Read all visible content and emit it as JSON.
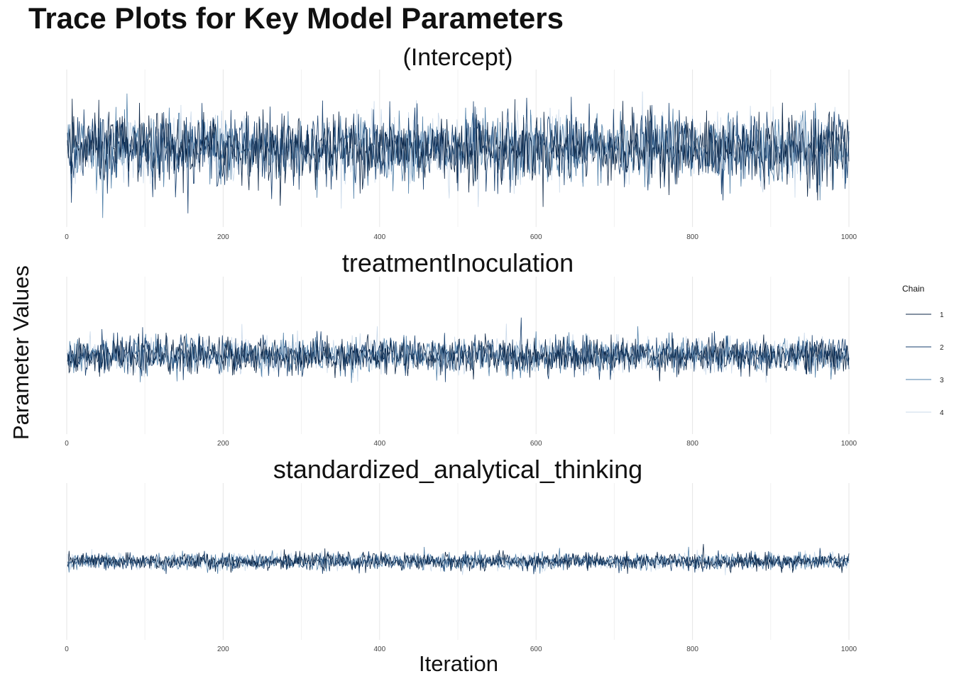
{
  "title": "Trace Plots for Key Model Parameters",
  "xlabel": "Iteration",
  "ylabel": "Parameter Values",
  "legend": {
    "title": "Chain",
    "items": [
      "1",
      "2",
      "3",
      "4"
    ]
  },
  "colors": {
    "chain1": "#0b2545",
    "chain2": "#173f6e",
    "chain3": "#4f7fa8",
    "chain4": "#c9d9ea"
  },
  "chart_data": [
    {
      "type": "line",
      "title": "(Intercept)",
      "xlim": [
        0,
        1000
      ],
      "x_ticks": [
        0,
        200,
        400,
        600,
        800,
        1000
      ],
      "series": [
        {
          "name": "1",
          "mean": 0,
          "sd": 0.55,
          "iterations": 1000
        },
        {
          "name": "2",
          "mean": 0,
          "sd": 0.55,
          "iterations": 1000
        },
        {
          "name": "3",
          "mean": 0,
          "sd": 0.55,
          "iterations": 1000
        },
        {
          "name": "4",
          "mean": 0,
          "sd": 0.55,
          "iterations": 1000
        }
      ],
      "ylim": [
        -2.5,
        2.5
      ]
    },
    {
      "type": "line",
      "title": "treatmentInoculation",
      "xlim": [
        0,
        1000
      ],
      "x_ticks": [
        0,
        200,
        400,
        600,
        800,
        1000
      ],
      "series": [
        {
          "name": "1",
          "mean": 0,
          "sd": 0.28,
          "iterations": 1000
        },
        {
          "name": "2",
          "mean": 0,
          "sd": 0.28,
          "iterations": 1000
        },
        {
          "name": "3",
          "mean": 0,
          "sd": 0.28,
          "iterations": 1000
        },
        {
          "name": "4",
          "mean": 0,
          "sd": 0.28,
          "iterations": 1000
        }
      ],
      "ylim": [
        -2.5,
        2.5
      ]
    },
    {
      "type": "line",
      "title": "standardized_analytical_thinking",
      "xlim": [
        0,
        1000
      ],
      "x_ticks": [
        0,
        200,
        400,
        600,
        800,
        1000
      ],
      "series": [
        {
          "name": "1",
          "mean": 0,
          "sd": 0.13,
          "iterations": 1000
        },
        {
          "name": "2",
          "mean": 0,
          "sd": 0.13,
          "iterations": 1000
        },
        {
          "name": "3",
          "mean": 0,
          "sd": 0.13,
          "iterations": 1000
        },
        {
          "name": "4",
          "mean": 0,
          "sd": 0.13,
          "iterations": 1000
        }
      ],
      "ylim": [
        -2.5,
        2.5
      ]
    }
  ]
}
